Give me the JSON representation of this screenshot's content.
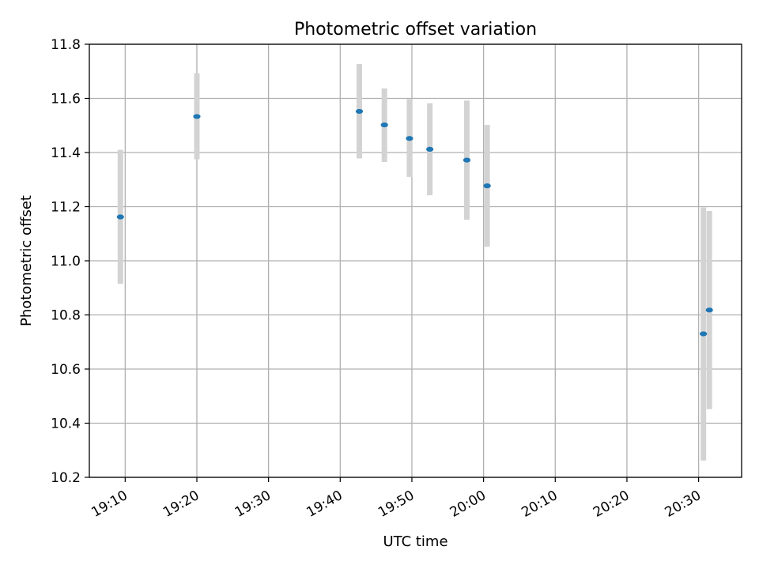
{
  "chart_data": {
    "type": "scatter",
    "title": "Photometric offset variation",
    "xlabel": "UTC time",
    "ylabel": "Photometric offset",
    "xlim": [
      "19:05",
      "20:36"
    ],
    "ylim": [
      10.2,
      11.8
    ],
    "grid": true,
    "x_ticks": [
      "19:10",
      "19:20",
      "19:30",
      "19:40",
      "19:50",
      "20:00",
      "20:10",
      "20:20",
      "20:30"
    ],
    "y_ticks": [
      "10.2",
      "10.4",
      "10.6",
      "10.8",
      "11.0",
      "11.2",
      "11.4",
      "11.6",
      "11.8"
    ],
    "colors": {
      "point": "#1f77b4",
      "errorbar": "#d3d3d3",
      "grid": "#b0b0b0"
    },
    "series": [
      {
        "x": [
          "19:09:20",
          "19:20:00",
          "19:42:40",
          "19:46:10",
          "19:49:40",
          "19:52:30",
          "19:57:40",
          "20:00:30",
          "20:30:40",
          "20:31:30"
        ],
        "y": [
          11.162,
          11.533,
          11.552,
          11.502,
          11.452,
          11.412,
          11.372,
          11.277,
          10.73,
          10.818
        ],
        "err_low": [
          10.915,
          11.375,
          11.378,
          11.365,
          11.31,
          11.242,
          11.152,
          11.052,
          10.262,
          10.452
        ],
        "err_high": [
          11.41,
          11.693,
          11.727,
          11.637,
          11.597,
          11.582,
          11.592,
          11.502,
          11.197,
          11.184
        ]
      }
    ]
  }
}
